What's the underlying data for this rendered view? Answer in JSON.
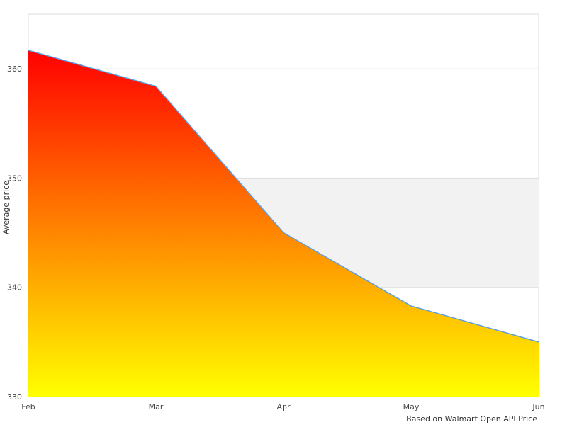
{
  "chart_data": {
    "type": "area",
    "title": "",
    "xlabel": "Based on Walmart Open API Price",
    "ylabel": "Average price",
    "categories": [
      "Feb",
      "Mar",
      "Apr",
      "May",
      "Jun"
    ],
    "values": [
      361.7,
      358.4,
      345.0,
      338.3,
      335.0
    ],
    "ylim": [
      330,
      365
    ],
    "yticks": [
      330,
      340,
      350,
      360
    ],
    "grid": true,
    "band": [
      340,
      350
    ],
    "colors": {
      "gradient_top": "#ff0000",
      "gradient_bottom": "#ffff00",
      "line": "#5aa0e6",
      "band": "#f2f2f2",
      "grid": "#e0e0e0"
    }
  }
}
